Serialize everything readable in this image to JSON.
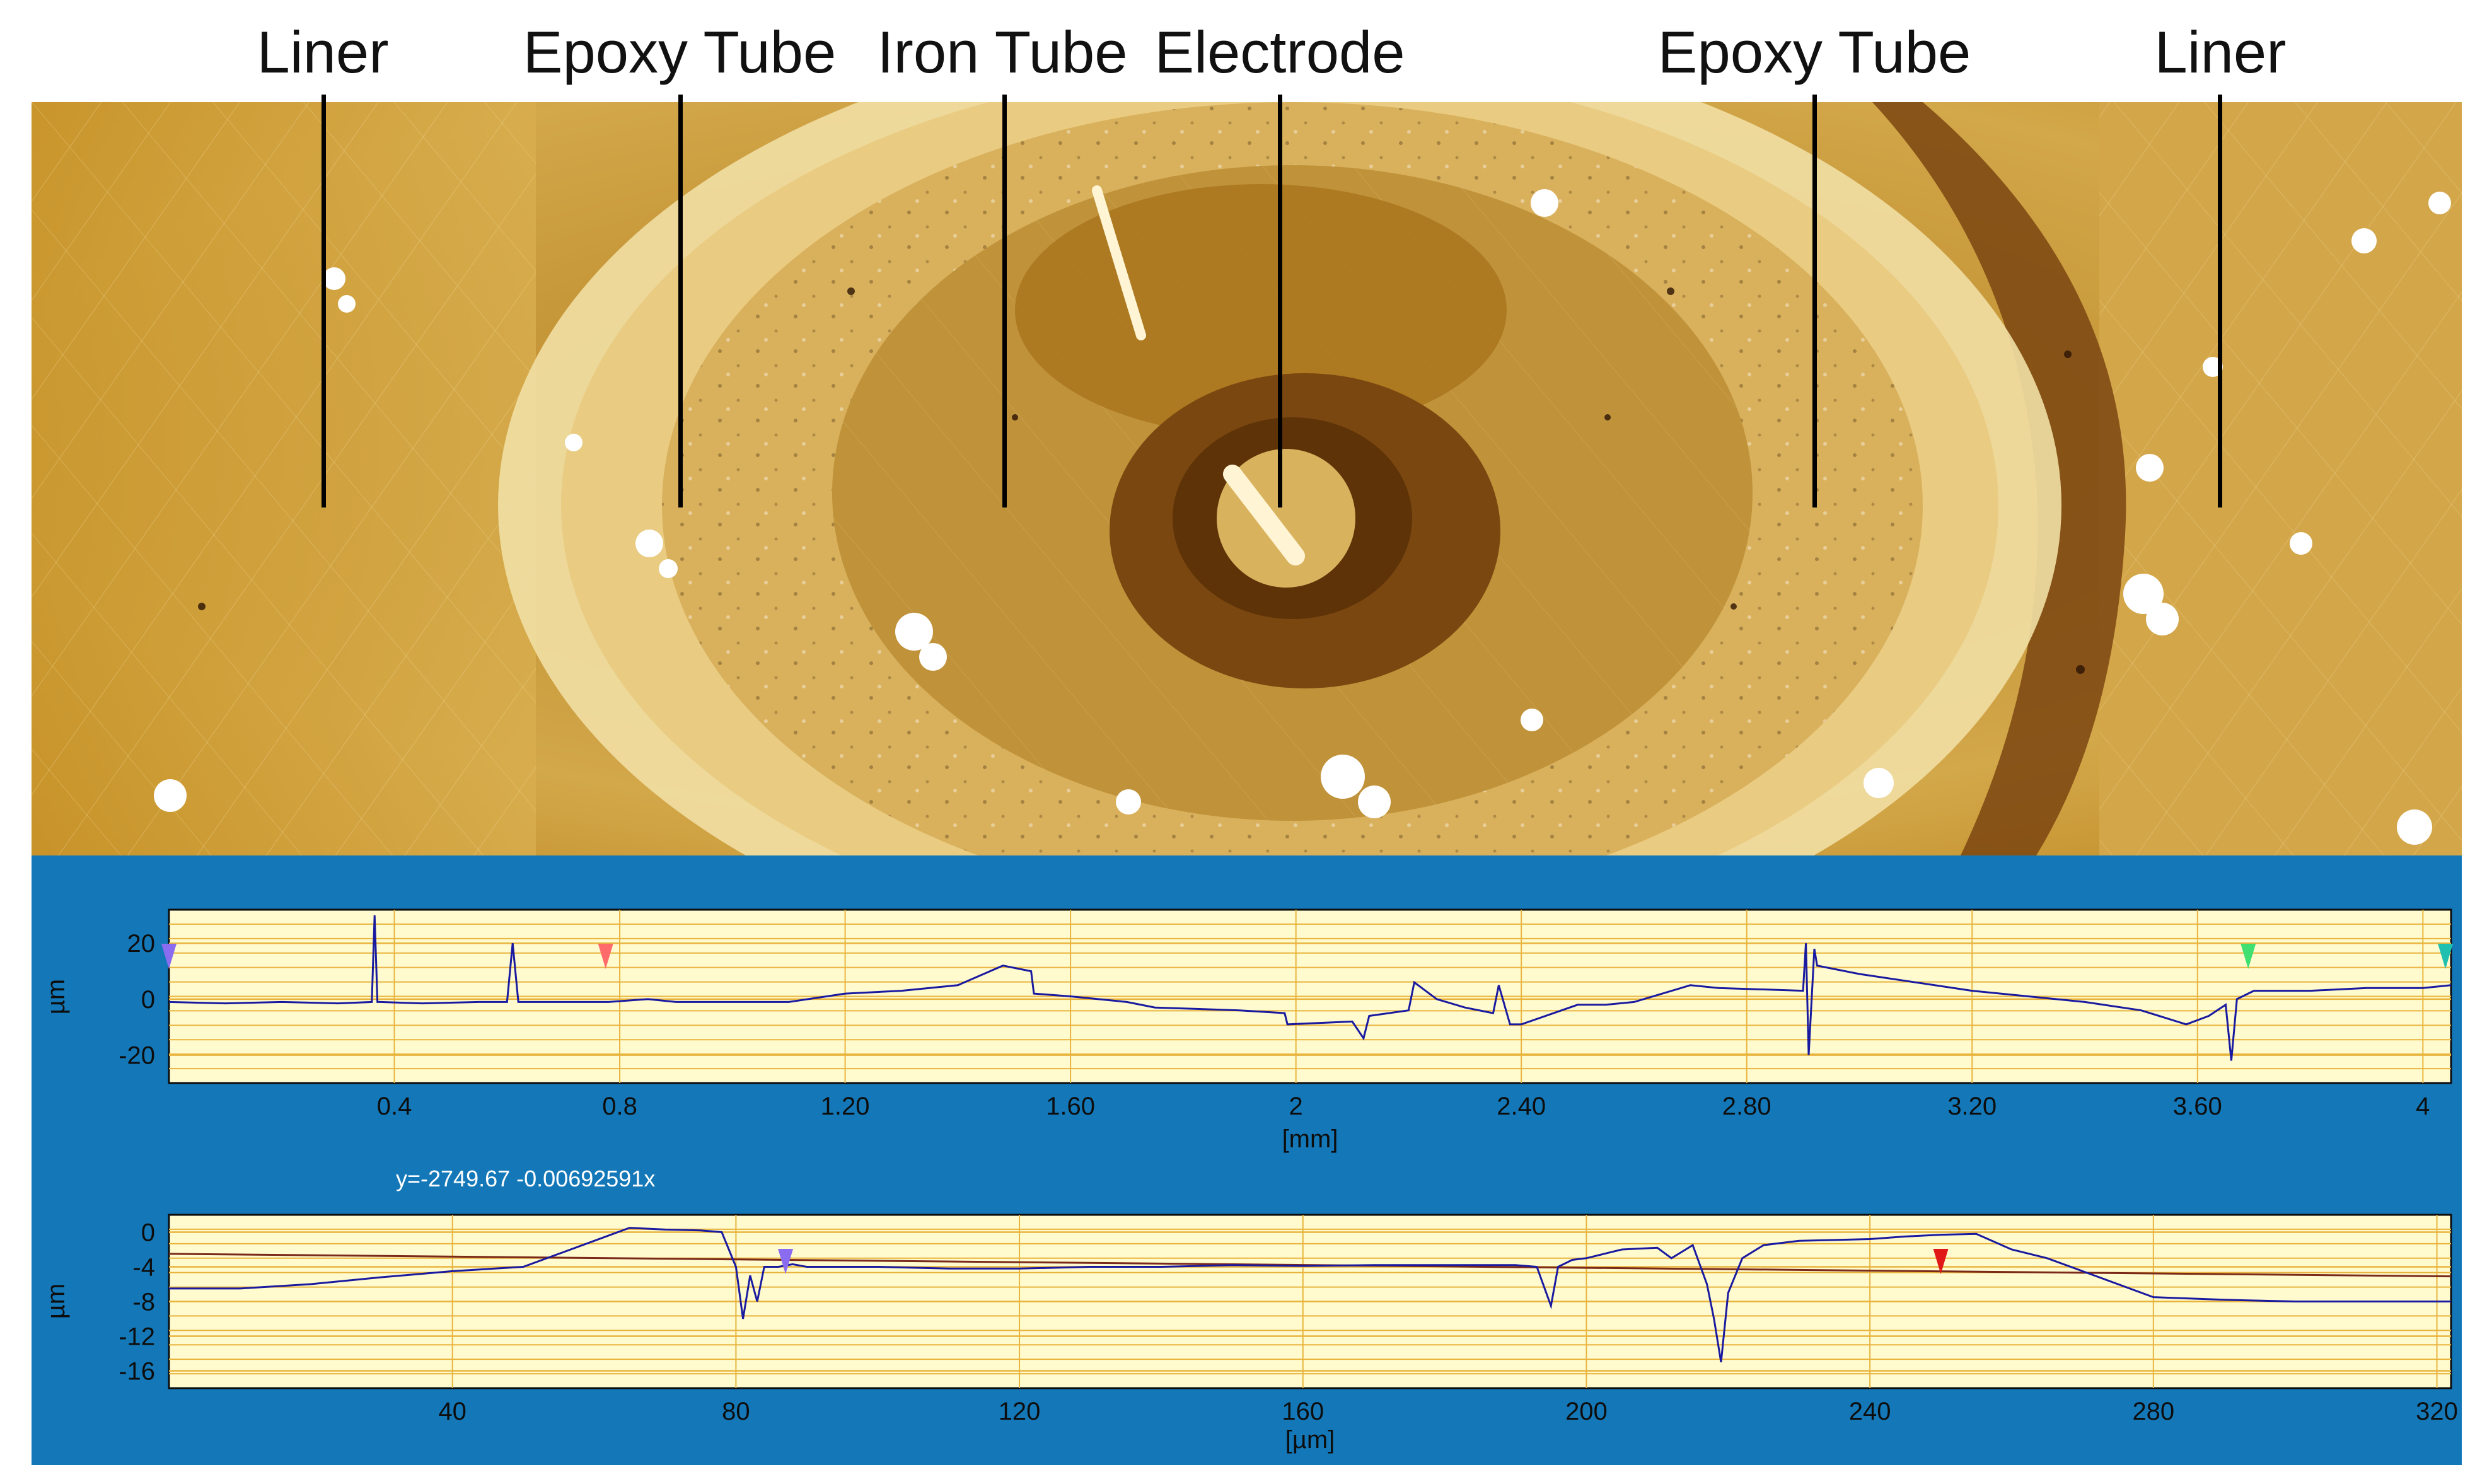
{
  "labels": [
    "Liner",
    "Epoxy Tube",
    "Iron Tube",
    "Electrode",
    "Epoxy Tube",
    "Liner"
  ],
  "colors": {
    "map_dark": "#5e3308",
    "map_mid": "#b8861e",
    "map_light": "#f4e3b3",
    "panel_blue": "#1478b8",
    "plot_bg": "#fffbcf",
    "grid": "#e8b43e",
    "trace": "#1a1aa0",
    "fit_line": "#7a2a1a"
  },
  "chart_data": [
    {
      "type": "line",
      "xlabel": "[mm]",
      "ylabel": "µm",
      "xlim": [
        0.0,
        4.05
      ],
      "ylim": [
        -30,
        32
      ],
      "xticks": [
        0.4,
        0.8,
        1.2,
        1.6,
        2.0,
        2.4,
        2.8,
        3.2,
        3.6,
        4.0
      ],
      "xtick_labels": [
        "0.4",
        "0.8",
        "1.20",
        "1.60",
        "2",
        "2.40",
        "2.80",
        "3.20",
        "3.60",
        "4"
      ],
      "yticks": [
        20,
        0,
        -20
      ],
      "ytick_labels": [
        "20",
        "0",
        "-20"
      ],
      "series": [
        {
          "x": [
            0.0,
            0.1,
            0.2,
            0.3,
            0.36,
            0.365,
            0.37,
            0.375,
            0.45,
            0.55,
            0.6,
            0.61,
            0.62,
            0.7,
            0.78,
            0.85,
            0.9,
            1.0,
            1.1,
            1.2,
            1.3,
            1.4,
            1.48,
            1.53,
            1.535,
            1.6,
            1.7,
            1.75,
            1.9,
            1.98,
            1.985,
            2.1,
            2.12,
            2.13,
            2.2,
            2.21,
            2.25,
            2.3,
            2.35,
            2.36,
            2.38,
            2.4,
            2.5,
            2.55,
            2.6,
            2.7,
            2.75,
            2.9,
            2.905,
            2.91,
            2.92,
            2.925,
            3.0,
            3.1,
            3.2,
            3.3,
            3.4,
            3.5,
            3.58,
            3.62,
            3.65,
            3.66,
            3.67,
            3.7,
            3.8,
            3.9,
            4.0,
            4.05
          ],
          "y": [
            -1,
            -1.5,
            -1,
            -1.5,
            -1,
            30,
            -1,
            -1,
            -1.5,
            -1,
            -1,
            20,
            -1,
            -1,
            -1,
            0,
            -1,
            -1,
            -1,
            2,
            3,
            5,
            12,
            10,
            2,
            1,
            -1,
            -3,
            -4,
            -5,
            -9,
            -8,
            -14,
            -6,
            -4,
            6,
            0,
            -3,
            -5,
            5,
            -9,
            -9,
            -2,
            -2,
            -1,
            5,
            4,
            3,
            20,
            -20,
            18,
            12,
            9,
            6,
            3,
            1,
            -1,
            -4,
            -9,
            -6,
            -2,
            -22,
            0,
            3,
            3,
            4,
            4,
            5
          ]
        }
      ],
      "markers": [
        {
          "x": 0.0,
          "color": "#8a6cf0"
        },
        {
          "x": 0.775,
          "color": "#ff6b6b"
        },
        {
          "x": 3.69,
          "color": "#3fe070"
        },
        {
          "x": 4.04,
          "color": "#20c0b0"
        }
      ]
    },
    {
      "type": "line",
      "xlabel": "[µm]",
      "ylabel": "µm",
      "fit_label": "y=-2749.67 -0.00692591x",
      "xlim": [
        0,
        322
      ],
      "ylim": [
        -18,
        2
      ],
      "xticks": [
        40,
        80,
        120,
        160,
        200,
        240,
        280,
        320
      ],
      "xtick_labels": [
        "40",
        "80",
        "120",
        "160",
        "200",
        "240",
        "280",
        "320"
      ],
      "yticks": [
        0,
        -4,
        -8,
        -12,
        -16
      ],
      "ytick_labels": [
        "0",
        "-4",
        "-8",
        "-12",
        "-16"
      ],
      "series": [
        {
          "x": [
            0,
            10,
            20,
            30,
            40,
            50,
            55,
            60,
            65,
            70,
            75,
            78,
            80,
            81,
            82,
            83,
            84,
            86,
            88,
            90,
            100,
            110,
            120,
            130,
            140,
            150,
            160,
            170,
            180,
            190,
            193,
            195,
            196,
            198,
            200,
            205,
            210,
            212,
            215,
            217,
            218,
            219,
            220,
            222,
            225,
            230,
            240,
            245,
            250,
            255,
            260,
            265,
            270,
            280,
            290,
            300,
            310,
            322
          ],
          "y": [
            -6.5,
            -6.5,
            -6,
            -5.2,
            -4.5,
            -4,
            -2.5,
            -1,
            0.5,
            0.3,
            0.2,
            0,
            -4,
            -10,
            -5,
            -8,
            -4,
            -4,
            -3.7,
            -4,
            -4,
            -4.2,
            -4.2,
            -4,
            -4,
            -3.8,
            -3.9,
            -3.8,
            -3.8,
            -3.8,
            -4,
            -8.5,
            -4,
            -3.2,
            -3,
            -2,
            -1.8,
            -3,
            -1.5,
            -6,
            -10,
            -15,
            -7,
            -3,
            -1.5,
            -1,
            -0.8,
            -0.5,
            -0.3,
            -0.2,
            -2,
            -3,
            -4.5,
            -7.5,
            -7.8,
            -8,
            -8,
            -8
          ]
        },
        {
          "name": "y=-2749.67 -0.00692591x",
          "x": [
            0,
            322
          ],
          "y": [
            -2.5,
            -5.1
          ]
        }
      ],
      "markers": [
        {
          "x": 87,
          "color": "#8a6cf0"
        },
        {
          "x": 250,
          "color": "#e01818"
        }
      ]
    }
  ]
}
